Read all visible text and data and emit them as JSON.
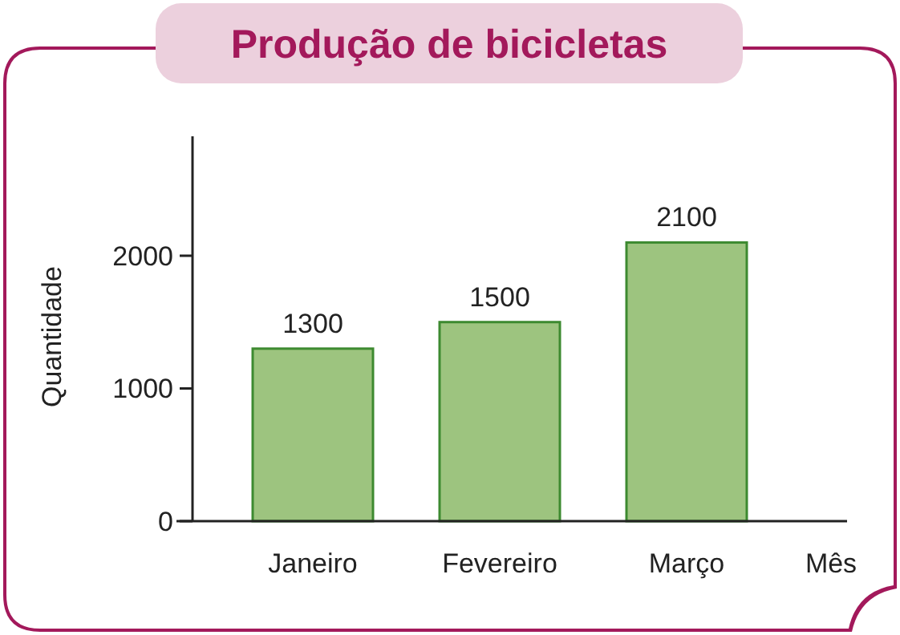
{
  "chart_data": {
    "type": "bar",
    "title": "Produção de bicicletas",
    "xlabel": "Mês",
    "ylabel": "Quantidade",
    "categories": [
      "Janeiro",
      "Fevereiro",
      "Março"
    ],
    "values": [
      1300,
      1500,
      2100
    ],
    "color": "#9dc47f",
    "ylim": [
      0,
      2900
    ],
    "yticks": [
      0,
      1000,
      2000
    ],
    "data_labels": true
  }
}
